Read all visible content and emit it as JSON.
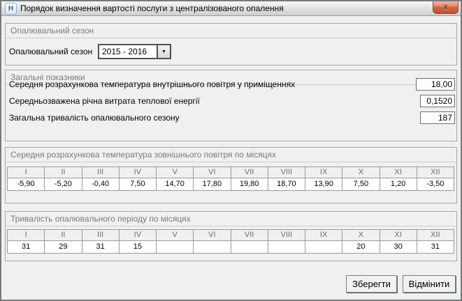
{
  "window": {
    "title": "Порядок визначення вартості послуги з централізованого опалення",
    "icon_letter": "Н",
    "close_glyph": "x"
  },
  "colors": {
    "dialog_background": "#f0f0f0",
    "close_button_red": "#c4512f",
    "group_title_gray": "#7b7b7b",
    "table_border_gray": "#9b9b9b"
  },
  "season_group": {
    "title": "Опалювальний сезон",
    "label": "Опалювальний сезон",
    "combo_value": "2015 - 2016"
  },
  "general_group": {
    "title": "Загальні показники",
    "rows": [
      {
        "label": "Середня розрахункова температура внутрішнього повітря у приміщеннях",
        "value": "18,00"
      },
      {
        "label": "Середньозважена річна витрата теплової енергії",
        "value": "0,1520"
      },
      {
        "label": "Загальна тривалість опалювального сезону",
        "value": "187"
      }
    ]
  },
  "temperature_group": {
    "title": "Середня розрахункова температура зовнішнього повітря по місяцях",
    "months": [
      "I",
      "II",
      "III",
      "IV",
      "V",
      "VI",
      "VII",
      "VIII",
      "IX",
      "X",
      "XI",
      "XII"
    ],
    "values": [
      "-5,90",
      "-5,20",
      "-0,40",
      "7,50",
      "14,70",
      "17,80",
      "19,80",
      "18,70",
      "13,90",
      "7,50",
      "1,20",
      "-3,50"
    ]
  },
  "duration_group": {
    "title": "Тривалість опалювального періоду по місяцях",
    "months": [
      "I",
      "II",
      "III",
      "IV",
      "V",
      "VI",
      "VII",
      "VIII",
      "IX",
      "X",
      "XI",
      "XII"
    ],
    "values": [
      "31",
      "29",
      "31",
      "15",
      "",
      "",
      "",
      "",
      "",
      "20",
      "30",
      "31"
    ]
  },
  "footer": {
    "save_label": "Зберегти",
    "cancel_label": "Відмінити"
  }
}
